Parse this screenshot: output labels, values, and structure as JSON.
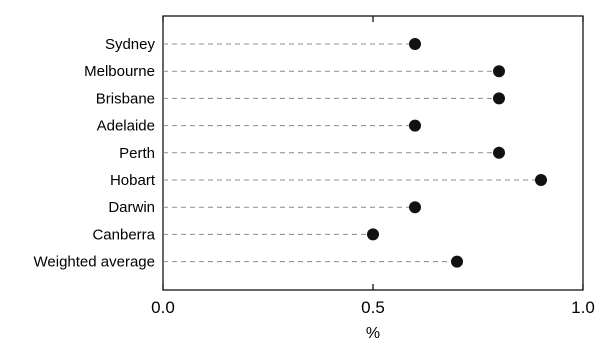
{
  "chart_data": {
    "type": "dot",
    "categories": [
      "Sydney",
      "Melbourne",
      "Brisbane",
      "Adelaide",
      "Perth",
      "Hobart",
      "Darwin",
      "Canberra",
      "Weighted average"
    ],
    "values": [
      0.6,
      0.8,
      0.8,
      0.6,
      0.8,
      0.9,
      0.6,
      0.5,
      0.7
    ],
    "x_ticks": [
      "0.0",
      "0.5",
      "1.0"
    ],
    "xlabel": "%",
    "xlim": [
      0,
      1
    ],
    "grid": false,
    "colors": {
      "marker": "#111111",
      "leader": "#8c8c8c",
      "axis": "#000000"
    }
  }
}
